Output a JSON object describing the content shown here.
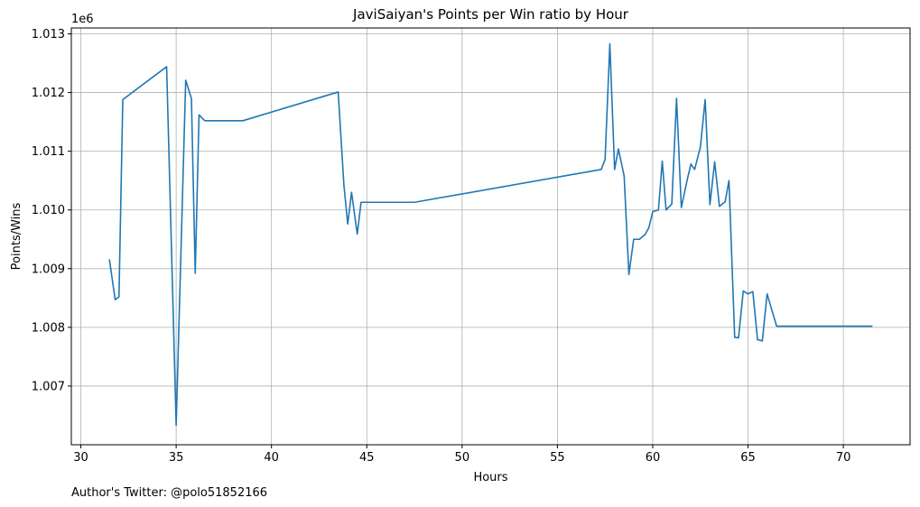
{
  "chart_data": {
    "type": "line",
    "title": "JaviSaiyan's Points per Win ratio by Hour",
    "xlabel": "Hours",
    "ylabel": "Points/Wins",
    "y_offset_label": "1e6",
    "xlim": [
      29.5,
      73.5
    ],
    "ylim": [
      1006.0,
      1013.1
    ],
    "x_ticks": [
      30,
      35,
      40,
      45,
      50,
      55,
      60,
      65,
      70
    ],
    "x_tick_labels": [
      "30",
      "35",
      "40",
      "45",
      "50",
      "55",
      "60",
      "65",
      "70"
    ],
    "y_ticks": [
      1007,
      1008,
      1009,
      1010,
      1011,
      1012,
      1013
    ],
    "y_tick_labels": [
      "1.007",
      "1.008",
      "1.009",
      "1.010",
      "1.011",
      "1.012",
      "1.013"
    ],
    "grid": true,
    "line_color": "#1f77b4",
    "series": [
      {
        "name": "",
        "points": [
          [
            31.5,
            1009.15
          ],
          [
            31.8,
            1008.47
          ],
          [
            32.0,
            1008.52
          ],
          [
            32.2,
            1011.88
          ],
          [
            34.5,
            1012.44
          ],
          [
            35.0,
            1006.33
          ],
          [
            35.5,
            1012.21
          ],
          [
            35.8,
            1011.9
          ],
          [
            36.0,
            1008.92
          ],
          [
            36.2,
            1011.62
          ],
          [
            36.5,
            1011.52
          ],
          [
            38.5,
            1011.52
          ],
          [
            43.5,
            1012.01
          ],
          [
            43.8,
            1010.42
          ],
          [
            44.0,
            1009.76
          ],
          [
            44.2,
            1010.3
          ],
          [
            44.5,
            1009.59
          ],
          [
            44.7,
            1010.13
          ],
          [
            47.5,
            1010.13
          ],
          [
            57.3,
            1010.69
          ],
          [
            57.5,
            1010.86
          ],
          [
            57.75,
            1012.83
          ],
          [
            58.0,
            1010.69
          ],
          [
            58.2,
            1011.04
          ],
          [
            58.5,
            1010.58
          ],
          [
            58.75,
            1008.9
          ],
          [
            59.0,
            1009.5
          ],
          [
            59.3,
            1009.5
          ],
          [
            59.6,
            1009.58
          ],
          [
            59.8,
            1009.7
          ],
          [
            60.0,
            1009.97
          ],
          [
            60.3,
            1010.0
          ],
          [
            60.5,
            1010.83
          ],
          [
            60.7,
            1010.0
          ],
          [
            61.0,
            1010.1
          ],
          [
            61.25,
            1011.9
          ],
          [
            61.5,
            1010.04
          ],
          [
            61.8,
            1010.5
          ],
          [
            62.0,
            1010.78
          ],
          [
            62.2,
            1010.69
          ],
          [
            62.5,
            1011.07
          ],
          [
            62.75,
            1011.88
          ],
          [
            63.0,
            1010.09
          ],
          [
            63.25,
            1010.82
          ],
          [
            63.5,
            1010.06
          ],
          [
            63.8,
            1010.14
          ],
          [
            64.0,
            1010.5
          ],
          [
            64.3,
            1007.83
          ],
          [
            64.5,
            1007.82
          ],
          [
            64.75,
            1008.62
          ],
          [
            65.0,
            1008.57
          ],
          [
            65.25,
            1008.61
          ],
          [
            65.5,
            1007.79
          ],
          [
            65.75,
            1007.77
          ],
          [
            66.0,
            1008.57
          ],
          [
            66.5,
            1008.02
          ],
          [
            71.5,
            1008.02
          ]
        ]
      }
    ]
  },
  "footer": {
    "author": "Author's Twitter: @polo51852166"
  }
}
